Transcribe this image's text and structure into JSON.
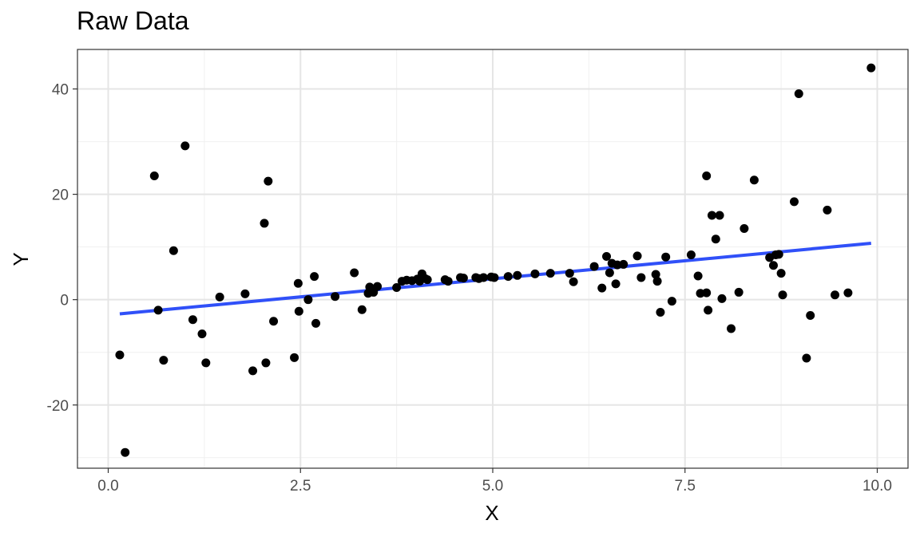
{
  "chart_data": {
    "type": "scatter",
    "title": "Raw Data",
    "xlabel": "X",
    "ylabel": "Y",
    "xlim": [
      -0.4,
      10.4
    ],
    "ylim": [
      -32,
      47.5
    ],
    "x_ticks": [
      0.0,
      2.5,
      5.0,
      7.5,
      10.0
    ],
    "x_tick_labels": [
      "0.0",
      "2.5",
      "5.0",
      "7.5",
      "10.0"
    ],
    "y_ticks": [
      -20,
      0,
      20,
      40
    ],
    "y_tick_labels": [
      "-20",
      "0",
      "20",
      "40"
    ],
    "grid": true,
    "point_color": "#000000",
    "line_color": "#3050F8",
    "points": [
      [
        0.15,
        -10.5
      ],
      [
        0.22,
        -29.0
      ],
      [
        0.6,
        23.5
      ],
      [
        0.65,
        -2.0
      ],
      [
        0.72,
        -11.5
      ],
      [
        0.85,
        9.3
      ],
      [
        1.0,
        29.2
      ],
      [
        1.1,
        -3.8
      ],
      [
        1.22,
        -6.5
      ],
      [
        1.27,
        -12.0
      ],
      [
        1.45,
        0.5
      ],
      [
        1.78,
        1.1
      ],
      [
        1.88,
        -13.5
      ],
      [
        2.03,
        14.5
      ],
      [
        2.05,
        -12.0
      ],
      [
        2.08,
        22.5
      ],
      [
        2.15,
        -4.1
      ],
      [
        2.42,
        -11.0
      ],
      [
        2.47,
        3.1
      ],
      [
        2.48,
        -2.2
      ],
      [
        2.6,
        0.0
      ],
      [
        2.68,
        4.4
      ],
      [
        2.7,
        -4.5
      ],
      [
        2.95,
        0.6
      ],
      [
        3.2,
        5.1
      ],
      [
        3.3,
        -1.9
      ],
      [
        3.38,
        1.2
      ],
      [
        3.4,
        2.4
      ],
      [
        3.45,
        1.4
      ],
      [
        3.5,
        2.5
      ],
      [
        3.75,
        2.3
      ],
      [
        3.82,
        3.5
      ],
      [
        3.88,
        3.7
      ],
      [
        3.95,
        3.6
      ],
      [
        4.02,
        3.9
      ],
      [
        4.05,
        3.5
      ],
      [
        4.08,
        4.9
      ],
      [
        4.12,
        4.0
      ],
      [
        4.15,
        3.8
      ],
      [
        4.38,
        3.8
      ],
      [
        4.42,
        3.5
      ],
      [
        4.58,
        4.2
      ],
      [
        4.62,
        4.1
      ],
      [
        4.78,
        4.2
      ],
      [
        4.82,
        4.0
      ],
      [
        4.88,
        4.2
      ],
      [
        4.98,
        4.3
      ],
      [
        5.02,
        4.2
      ],
      [
        5.2,
        4.4
      ],
      [
        5.32,
        4.6
      ],
      [
        5.55,
        4.9
      ],
      [
        5.75,
        5.0
      ],
      [
        6.0,
        5.0
      ],
      [
        6.05,
        3.4
      ],
      [
        6.32,
        6.3
      ],
      [
        6.42,
        2.2
      ],
      [
        6.48,
        8.2
      ],
      [
        6.52,
        5.1
      ],
      [
        6.55,
        6.9
      ],
      [
        6.6,
        3.0
      ],
      [
        6.62,
        6.6
      ],
      [
        6.7,
        6.7
      ],
      [
        6.88,
        8.3
      ],
      [
        6.93,
        4.2
      ],
      [
        7.12,
        4.8
      ],
      [
        7.14,
        3.5
      ],
      [
        7.18,
        -2.4
      ],
      [
        7.25,
        8.1
      ],
      [
        7.33,
        -0.3
      ],
      [
        7.58,
        8.5
      ],
      [
        7.67,
        4.5
      ],
      [
        7.7,
        1.2
      ],
      [
        7.78,
        23.5
      ],
      [
        7.78,
        1.3
      ],
      [
        7.8,
        -2.0
      ],
      [
        7.85,
        16.0
      ],
      [
        7.9,
        11.5
      ],
      [
        7.95,
        16.0
      ],
      [
        7.98,
        0.2
      ],
      [
        8.1,
        -5.5
      ],
      [
        8.2,
        1.4
      ],
      [
        8.27,
        13.5
      ],
      [
        8.4,
        22.7
      ],
      [
        8.6,
        8.0
      ],
      [
        8.65,
        6.5
      ],
      [
        8.68,
        8.5
      ],
      [
        8.72,
        8.6
      ],
      [
        8.75,
        5.0
      ],
      [
        8.77,
        0.9
      ],
      [
        8.92,
        18.6
      ],
      [
        8.98,
        39.1
      ],
      [
        9.08,
        -11.1
      ],
      [
        9.13,
        -3.0
      ],
      [
        9.35,
        17.0
      ],
      [
        9.45,
        0.9
      ],
      [
        9.62,
        1.3
      ],
      [
        9.92,
        44.0
      ]
    ],
    "fit_line": {
      "x": [
        0.15,
        9.92
      ],
      "y": [
        -2.7,
        10.7
      ]
    }
  }
}
